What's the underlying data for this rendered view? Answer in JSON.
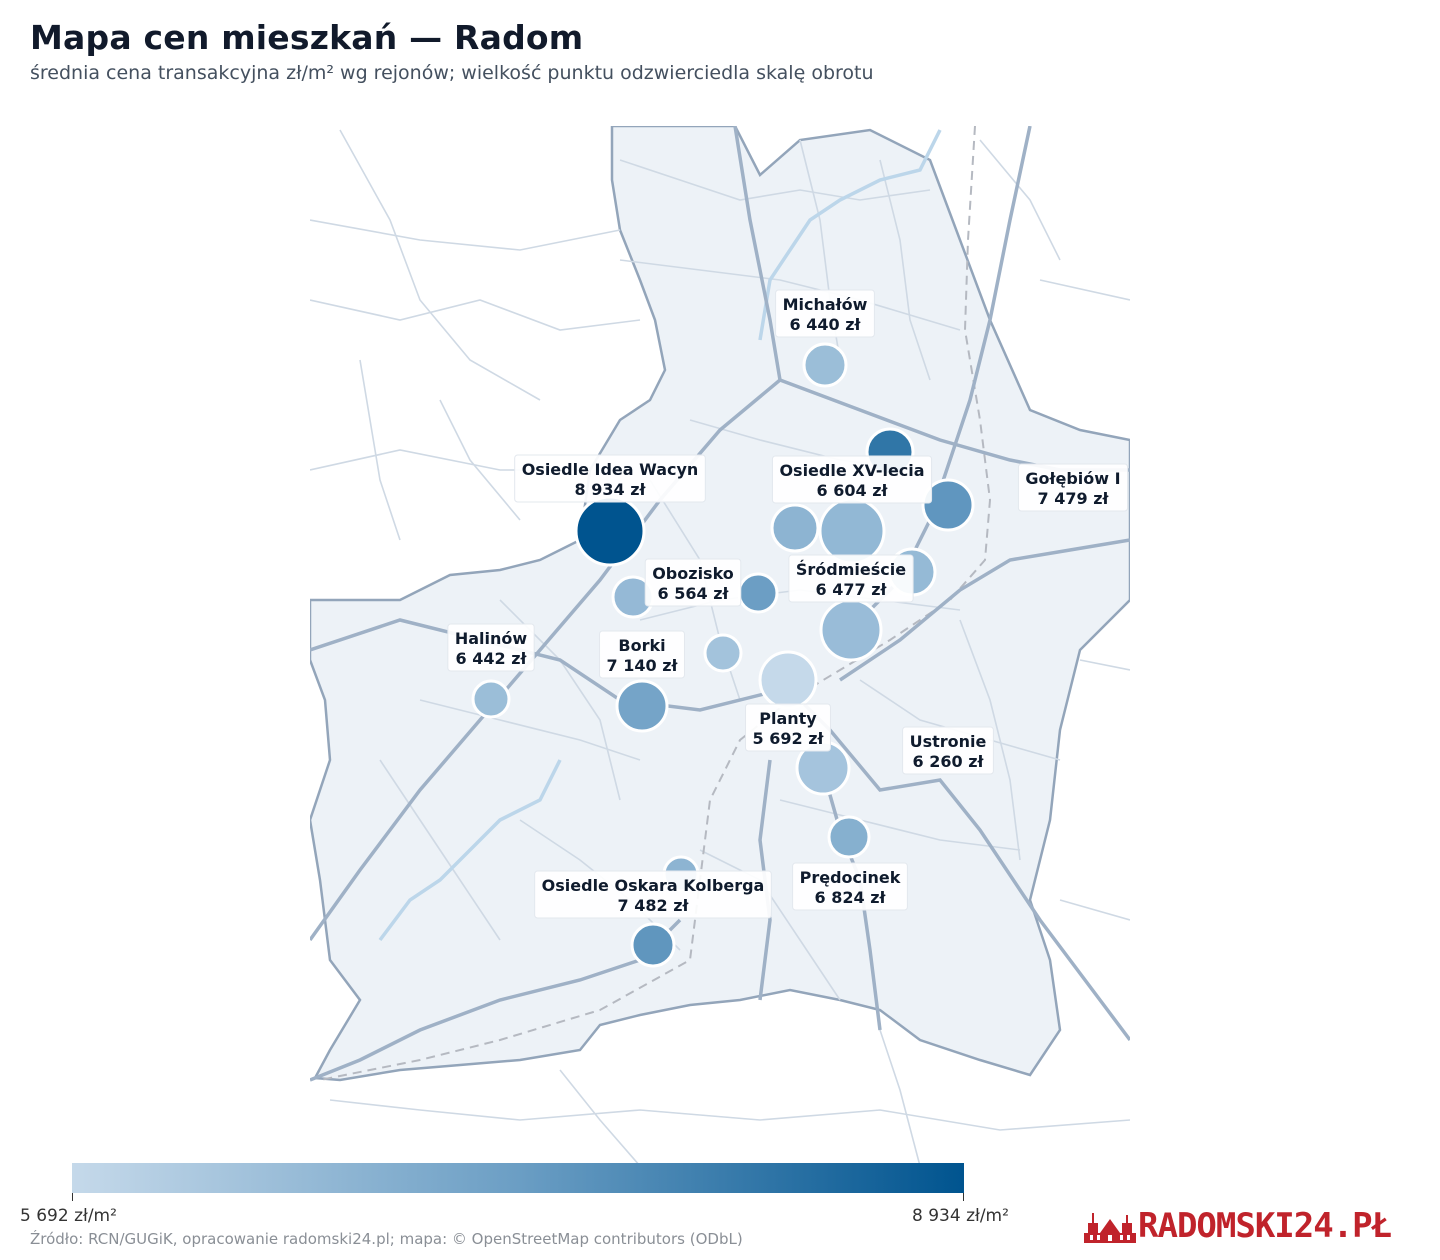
{
  "title": "Mapa cen mieszkań — Radom",
  "subtitle": "średnia cena transakcyjna zł/m² wg rejonów; wielkość punktu odzwierciedla skalę obrotu",
  "colors": {
    "low": "#c5d9ea",
    "high": "#00548f",
    "map_fill": "#edf2f7",
    "road": "#9fb1c6",
    "brand": "#c0232b"
  },
  "legend": {
    "min_label": "5 692 zł/m²",
    "max_label": "8 934 zł/m²",
    "min": 5692,
    "max": 8934
  },
  "source": "Źródło: RCN/GUGiK, opracowanie radomski24.pl; mapa: © OpenStreetMap contributors (ODbL)",
  "brand": {
    "text": "RADOMSKI24.PŁ",
    "icon": "town-hall-icon"
  },
  "regions": [
    {
      "name": "Michałów",
      "price_label": "6 440 zł",
      "price": 6440
    },
    {
      "name": "Osiedle Idea Wacyn",
      "price_label": "8 934 zł",
      "price": 8934
    },
    {
      "name": "Osiedle XV-lecia",
      "price_label": "6 604 zł",
      "price": 6604
    },
    {
      "name": "Gołębiów I",
      "price_label": "7 479 zł",
      "price": 7479
    },
    {
      "name": "Obozisko",
      "price_label": "6 564 zł",
      "price": 6564
    },
    {
      "name": "Śródmieście",
      "price_label": "6 477 zł",
      "price": 6477
    },
    {
      "name": "Halinów",
      "price_label": "6 442 zł",
      "price": 6442
    },
    {
      "name": "Borki",
      "price_label": "7 140 zł",
      "price": 7140
    },
    {
      "name": "Planty",
      "price_label": "5 692 zł",
      "price": 5692
    },
    {
      "name": "Ustronie",
      "price_label": "6 260 zł",
      "price": 6260
    },
    {
      "name": "Prędocinek",
      "price_label": "6 824 zł",
      "price": 6824
    },
    {
      "name": "Osiedle Oskara Kolberga",
      "price_label": "7 482 zł",
      "price": 7482
    }
  ]
}
